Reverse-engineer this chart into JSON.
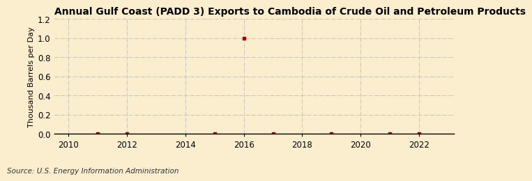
{
  "title": "Annual Gulf Coast (PADD 3) Exports to Cambodia of Crude Oil and Petroleum Products",
  "ylabel": "Thousand Barrels per Day",
  "source": "Source: U.S. Energy Information Administration",
  "background_color": "#faeece",
  "plot_background_color": "#faeece",
  "marker_color": "#aa0000",
  "marker": "s",
  "marker_size": 3.5,
  "xlim": [
    2009.5,
    2023.2
  ],
  "ylim": [
    0.0,
    1.2
  ],
  "yticks": [
    0.0,
    0.2,
    0.4,
    0.6,
    0.8,
    1.0,
    1.2
  ],
  "xticks": [
    2010,
    2012,
    2014,
    2016,
    2018,
    2020,
    2022
  ],
  "x_data": [
    2011,
    2012,
    2015,
    2016,
    2017,
    2019,
    2021,
    2022
  ],
  "y_data": [
    0.0,
    0.0,
    0.0,
    1.0,
    0.0,
    0.0,
    0.0,
    0.0
  ],
  "grid_color": "#bbbbbb",
  "grid_style": "-.",
  "title_fontsize": 10,
  "label_fontsize": 8,
  "tick_fontsize": 8.5,
  "source_fontsize": 7.5
}
